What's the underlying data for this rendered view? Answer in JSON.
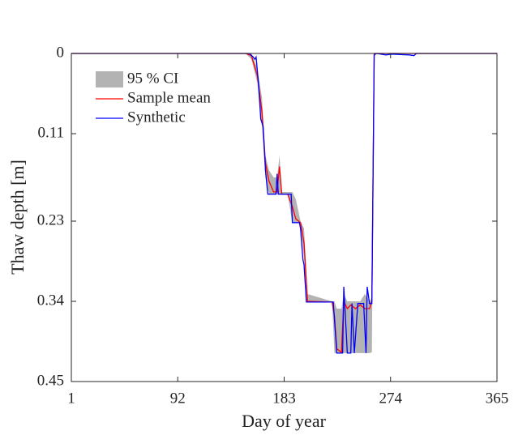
{
  "chart_data": {
    "type": "line",
    "xlabel": "Day of year",
    "ylabel": "Thaw depth [m]",
    "xlim": [
      1,
      365
    ],
    "xticks": [
      1,
      92,
      183,
      274,
      365
    ],
    "ylim": [
      0,
      0.45
    ],
    "yticks": [
      0,
      0.11,
      0.23,
      0.34,
      0.45
    ],
    "y_reversed": true,
    "series": [
      {
        "name": "95 % CI",
        "color": "#b3b3b3",
        "x": [
          1,
          150,
          155,
          160,
          164,
          167,
          170,
          174,
          177,
          179,
          181,
          186,
          190,
          193,
          197,
          200,
          203,
          224,
          226,
          228,
          232,
          234,
          237,
          240,
          244,
          248,
          252,
          256,
          258,
          260,
          365
        ],
        "lower": [
          0,
          0,
          0,
          0.02,
          0.06,
          0.14,
          0.16,
          0.17,
          0.17,
          0.14,
          0.19,
          0.19,
          0.19,
          0.2,
          0.23,
          0.24,
          0.33,
          0.34,
          0.34,
          0.35,
          0.35,
          0.33,
          0.34,
          0.34,
          0.34,
          0.34,
          0.33,
          0.34,
          0.335,
          0,
          0
        ],
        "upper": [
          0,
          0,
          0.008,
          0.04,
          0.1,
          0.17,
          0.193,
          0.193,
          0.193,
          0.193,
          0.193,
          0.193,
          0.232,
          0.232,
          0.232,
          0.282,
          0.341,
          0.341,
          0.411,
          0.411,
          0.411,
          0.411,
          0.411,
          0.411,
          0.411,
          0.411,
          0.411,
          0.411,
          0.41,
          0,
          0
        ]
      },
      {
        "name": "Sample mean",
        "color": "#ff0000",
        "x": [
          1,
          150,
          155,
          160,
          164,
          167,
          170,
          174,
          177,
          179,
          181,
          186,
          190,
          193,
          197,
          200,
          203,
          224,
          226,
          228,
          232,
          234,
          237,
          240,
          244,
          248,
          252,
          256,
          258,
          260,
          365
        ],
        "values": [
          0,
          0,
          0.003,
          0.03,
          0.08,
          0.15,
          0.175,
          0.19,
          0.19,
          0.155,
          0.193,
          0.193,
          0.21,
          0.227,
          0.232,
          0.26,
          0.34,
          0.341,
          0.36,
          0.405,
          0.41,
          0.34,
          0.35,
          0.345,
          0.35,
          0.345,
          0.35,
          0.35,
          0.34,
          0,
          0
        ]
      },
      {
        "name": "Synthetic",
        "color": "#0000ff",
        "x": [
          1,
          153,
          156,
          158,
          159,
          161,
          163,
          165,
          167,
          169,
          176,
          177,
          178,
          183,
          189,
          190,
          196,
          197,
          199,
          200,
          202,
          225,
          228,
          233,
          234,
          236,
          237,
          240,
          241,
          243,
          246,
          251,
          253,
          254,
          256,
          258,
          260,
          262,
          270,
          275,
          290,
          294,
          296,
          365
        ],
        "values": [
          0,
          0,
          0.004,
          0.008,
          0.005,
          0.04,
          0.09,
          0.1,
          0.16,
          0.193,
          0.193,
          0.165,
          0.193,
          0.193,
          0.193,
          0.232,
          0.232,
          0.24,
          0.282,
          0.29,
          0.341,
          0.341,
          0.411,
          0.411,
          0.32,
          0.38,
          0.411,
          0.411,
          0.343,
          0.411,
          0.343,
          0.343,
          0.411,
          0.32,
          0.343,
          0.343,
          0.002,
          0,
          0.002,
          0.001,
          0.002,
          0.003,
          0,
          0
        ]
      }
    ]
  }
}
